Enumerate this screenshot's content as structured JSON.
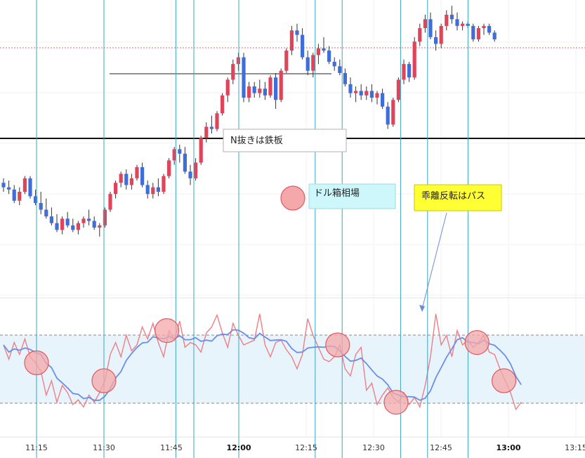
{
  "chart_data": {
    "type": "candlestick",
    "x_axis": {
      "ticks": [
        {
          "label": "11:15",
          "bold": false
        },
        {
          "label": "11:30",
          "bold": false
        },
        {
          "label": "11:45",
          "bold": false
        },
        {
          "label": "12:00",
          "bold": true
        },
        {
          "label": "12:15",
          "bold": false
        },
        {
          "label": "12:30",
          "bold": false
        },
        {
          "label": "12:45",
          "bold": false
        },
        {
          "label": "13:00",
          "bold": true
        },
        {
          "label": "13:15",
          "bold": false
        }
      ]
    },
    "colors": {
      "up": "#e0445a",
      "down": "#3f6ed8",
      "oscillator_fast": "#ef7e86",
      "oscillator_slow": "#6b8ee8",
      "band_fill": "#e8f4fc",
      "vertical_lines": "#3aa4c3",
      "circle_fill": "#f4a8aa",
      "circle_stroke": "#e05a5f"
    },
    "annotations": {
      "n_breakout": "N抜きは鉄板",
      "dollar_box": "ドル箱相場",
      "divergence_reversal": "乖離反転はパス"
    },
    "vertical_line_times": [
      "11:15",
      "11:30",
      "11:46",
      "11:50",
      "12:00",
      "12:17",
      "12:23",
      "12:36",
      "12:42",
      "12:51"
    ],
    "circle_marks_times": [
      "11:15",
      "11:30",
      "11:44",
      "12:22",
      "12:35",
      "12:53",
      "12:59"
    ],
    "candles": [
      {
        "o": 95,
        "h": 97,
        "l": 91,
        "c": 93
      },
      {
        "o": 93,
        "h": 96,
        "l": 90,
        "c": 92
      },
      {
        "o": 92,
        "h": 94,
        "l": 86,
        "c": 87
      },
      {
        "o": 87,
        "h": 93,
        "l": 85,
        "c": 91
      },
      {
        "o": 91,
        "h": 98,
        "l": 90,
        "c": 97
      },
      {
        "o": 97,
        "h": 98,
        "l": 88,
        "c": 89
      },
      {
        "o": 89,
        "h": 92,
        "l": 85,
        "c": 86
      },
      {
        "o": 86,
        "h": 91,
        "l": 81,
        "c": 83
      },
      {
        "o": 83,
        "h": 88,
        "l": 79,
        "c": 80
      },
      {
        "o": 80,
        "h": 84,
        "l": 76,
        "c": 77
      },
      {
        "o": 77,
        "h": 81,
        "l": 73,
        "c": 74
      },
      {
        "o": 74,
        "h": 80,
        "l": 72,
        "c": 79
      },
      {
        "o": 79,
        "h": 82,
        "l": 75,
        "c": 76
      },
      {
        "o": 76,
        "h": 79,
        "l": 73,
        "c": 74
      },
      {
        "o": 74,
        "h": 78,
        "l": 72,
        "c": 77
      },
      {
        "o": 77,
        "h": 80,
        "l": 75,
        "c": 79
      },
      {
        "o": 79,
        "h": 83,
        "l": 76,
        "c": 78
      },
      {
        "o": 78,
        "h": 80,
        "l": 74,
        "c": 75
      },
      {
        "o": 75,
        "h": 77,
        "l": 71,
        "c": 76
      },
      {
        "o": 76,
        "h": 84,
        "l": 75,
        "c": 83
      },
      {
        "o": 83,
        "h": 91,
        "l": 82,
        "c": 90
      },
      {
        "o": 90,
        "h": 96,
        "l": 88,
        "c": 95
      },
      {
        "o": 95,
        "h": 100,
        "l": 93,
        "c": 99
      },
      {
        "o": 99,
        "h": 101,
        "l": 92,
        "c": 94
      },
      {
        "o": 94,
        "h": 99,
        "l": 92,
        "c": 97
      },
      {
        "o": 97,
        "h": 103,
        "l": 96,
        "c": 102
      },
      {
        "o": 102,
        "h": 104,
        "l": 93,
        "c": 94
      },
      {
        "o": 94,
        "h": 96,
        "l": 88,
        "c": 90
      },
      {
        "o": 90,
        "h": 95,
        "l": 88,
        "c": 93
      },
      {
        "o": 93,
        "h": 97,
        "l": 89,
        "c": 91
      },
      {
        "o": 91,
        "h": 99,
        "l": 90,
        "c": 98
      },
      {
        "o": 98,
        "h": 106,
        "l": 97,
        "c": 105
      },
      {
        "o": 105,
        "h": 111,
        "l": 103,
        "c": 110
      },
      {
        "o": 110,
        "h": 112,
        "l": 104,
        "c": 108
      },
      {
        "o": 108,
        "h": 111,
        "l": 99,
        "c": 100
      },
      {
        "o": 100,
        "h": 103,
        "l": 94,
        "c": 97
      },
      {
        "o": 97,
        "h": 106,
        "l": 96,
        "c": 104
      },
      {
        "o": 104,
        "h": 116,
        "l": 103,
        "c": 115
      },
      {
        "o": 115,
        "h": 122,
        "l": 113,
        "c": 120
      },
      {
        "o": 120,
        "h": 125,
        "l": 117,
        "c": 119
      },
      {
        "o": 119,
        "h": 127,
        "l": 118,
        "c": 126
      },
      {
        "o": 126,
        "h": 135,
        "l": 125,
        "c": 134
      },
      {
        "o": 134,
        "h": 142,
        "l": 131,
        "c": 141
      },
      {
        "o": 141,
        "h": 150,
        "l": 139,
        "c": 148
      },
      {
        "o": 148,
        "h": 153,
        "l": 145,
        "c": 151
      },
      {
        "o": 151,
        "h": 153,
        "l": 131,
        "c": 133
      },
      {
        "o": 133,
        "h": 140,
        "l": 131,
        "c": 138
      },
      {
        "o": 138,
        "h": 140,
        "l": 133,
        "c": 135
      },
      {
        "o": 135,
        "h": 141,
        "l": 133,
        "c": 137
      },
      {
        "o": 137,
        "h": 140,
        "l": 132,
        "c": 134
      },
      {
        "o": 134,
        "h": 143,
        "l": 133,
        "c": 142
      },
      {
        "o": 142,
        "h": 144,
        "l": 128,
        "c": 132
      },
      {
        "o": 132,
        "h": 146,
        "l": 131,
        "c": 145
      },
      {
        "o": 145,
        "h": 155,
        "l": 144,
        "c": 154
      },
      {
        "o": 154,
        "h": 165,
        "l": 152,
        "c": 163
      },
      {
        "o": 163,
        "h": 166,
        "l": 158,
        "c": 161
      },
      {
        "o": 161,
        "h": 164,
        "l": 150,
        "c": 151
      },
      {
        "o": 151,
        "h": 154,
        "l": 143,
        "c": 145
      },
      {
        "o": 145,
        "h": 153,
        "l": 142,
        "c": 152
      },
      {
        "o": 152,
        "h": 157,
        "l": 148,
        "c": 155
      },
      {
        "o": 155,
        "h": 160,
        "l": 153,
        "c": 154
      },
      {
        "o": 154,
        "h": 156,
        "l": 148,
        "c": 149
      },
      {
        "o": 149,
        "h": 151,
        "l": 145,
        "c": 147
      },
      {
        "o": 147,
        "h": 150,
        "l": 143,
        "c": 144
      },
      {
        "o": 144,
        "h": 146,
        "l": 138,
        "c": 139
      },
      {
        "o": 139,
        "h": 142,
        "l": 133,
        "c": 135
      },
      {
        "o": 135,
        "h": 138,
        "l": 131,
        "c": 136
      },
      {
        "o": 136,
        "h": 139,
        "l": 132,
        "c": 134
      },
      {
        "o": 134,
        "h": 138,
        "l": 132,
        "c": 136
      },
      {
        "o": 136,
        "h": 139,
        "l": 131,
        "c": 133
      },
      {
        "o": 133,
        "h": 136,
        "l": 130,
        "c": 135
      },
      {
        "o": 135,
        "h": 137,
        "l": 128,
        "c": 129
      },
      {
        "o": 129,
        "h": 131,
        "l": 119,
        "c": 121
      },
      {
        "o": 121,
        "h": 133,
        "l": 120,
        "c": 132
      },
      {
        "o": 132,
        "h": 142,
        "l": 131,
        "c": 141
      },
      {
        "o": 141,
        "h": 150,
        "l": 139,
        "c": 148
      },
      {
        "o": 148,
        "h": 149,
        "l": 140,
        "c": 142
      },
      {
        "o": 142,
        "h": 160,
        "l": 141,
        "c": 158
      },
      {
        "o": 158,
        "h": 166,
        "l": 156,
        "c": 164
      },
      {
        "o": 164,
        "h": 170,
        "l": 162,
        "c": 168
      },
      {
        "o": 168,
        "h": 171,
        "l": 159,
        "c": 160
      },
      {
        "o": 160,
        "h": 163,
        "l": 154,
        "c": 157
      },
      {
        "o": 157,
        "h": 166,
        "l": 155,
        "c": 165
      },
      {
        "o": 165,
        "h": 172,
        "l": 163,
        "c": 170
      },
      {
        "o": 170,
        "h": 174,
        "l": 166,
        "c": 168
      },
      {
        "o": 168,
        "h": 171,
        "l": 163,
        "c": 165
      },
      {
        "o": 165,
        "h": 167,
        "l": 163,
        "c": 166
      },
      {
        "o": 166,
        "h": 167,
        "l": 164,
        "c": 165
      },
      {
        "o": 165,
        "h": 166,
        "l": 158,
        "c": 159
      },
      {
        "o": 159,
        "h": 165,
        "l": 158,
        "c": 164
      },
      {
        "o": 164,
        "h": 166,
        "l": 161,
        "c": 165
      },
      {
        "o": 165,
        "h": 166,
        "l": 161,
        "c": 162
      },
      {
        "o": 162,
        "h": 163,
        "l": 158,
        "c": 159
      }
    ],
    "oscillator_fast": [
      70,
      58,
      72,
      62,
      75,
      60,
      55,
      48,
      28,
      40,
      22,
      36,
      30,
      20,
      24,
      18,
      28,
      22,
      30,
      40,
      62,
      72,
      60,
      78,
      65,
      70,
      85,
      75,
      88,
      72,
      60,
      82,
      74,
      90,
      68,
      72,
      70,
      64,
      80,
      85,
      95,
      80,
      68,
      88,
      78,
      70,
      72,
      74,
      96,
      70,
      60,
      72,
      74,
      66,
      60,
      50,
      62,
      92,
      78,
      68,
      58,
      56,
      60,
      70,
      50,
      44,
      62,
      68,
      32,
      38,
      20,
      28,
      34,
      26,
      22,
      30,
      20,
      26,
      18,
      36,
      60,
      96,
      70,
      78,
      60,
      82,
      70,
      74,
      68,
      72,
      78,
      64,
      62,
      50,
      40,
      30,
      16,
      22
    ]
  }
}
